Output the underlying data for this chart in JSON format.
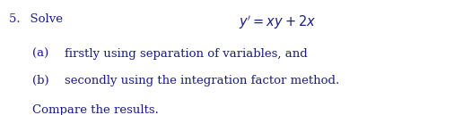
{
  "background_color": "#ffffff",
  "text_color": "#1c1c8a",
  "header": "5.  Solve",
  "equation": "$y^{\\prime} = xy + 2x$",
  "item_a_label": "(a)",
  "item_a_text": "firstly using separation of variables, and",
  "item_b_label": "(b)",
  "item_b_text": "secondly using the integration factor method.",
  "footer_text": "Compare the results.",
  "font_size": 9.5,
  "eq_font_size": 10.5,
  "fig_width": 5.16,
  "fig_height": 1.29,
  "dpi": 100
}
